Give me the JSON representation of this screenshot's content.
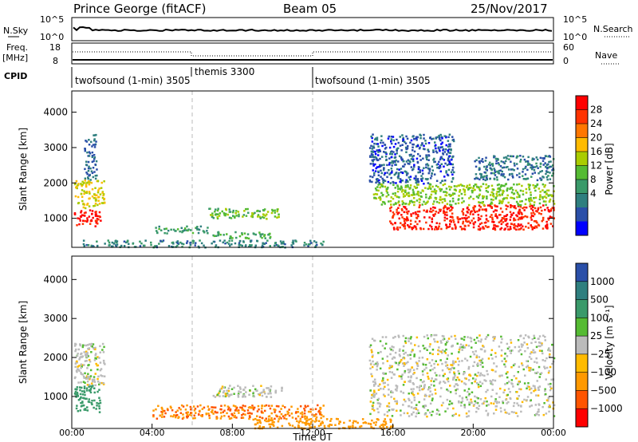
{
  "header": {
    "title": "Prince George (fitACF)",
    "beam": "Beam 05",
    "date": "25/Nov/2017"
  },
  "top_panels": {
    "nsky_label": "N.Sky",
    "nsky_ticks": [
      "10^5",
      "10^0"
    ],
    "nsearch_label": "N.Search",
    "nsearch_ticks": [
      "10^5",
      "10^0"
    ],
    "freq_label": "Freq.",
    "freq_unit": "[MHz]",
    "freq_ticks": [
      "18",
      "8"
    ],
    "nave_label": "Nave",
    "nave_ticks": [
      "60",
      "0"
    ],
    "cpid_label": "CPID",
    "cpid_segments": [
      {
        "label": "twofsound (1-min) 3505",
        "start_h": 0,
        "end_h": 6
      },
      {
        "label": "themis 3300",
        "start_h": 6,
        "end_h": 12
      },
      {
        "label": "twofsound (1-min) 3505",
        "start_h": 12,
        "end_h": 24
      }
    ]
  },
  "power_colorbar": {
    "label": "Power [dB]",
    "ticks": [
      "28",
      "24",
      "20",
      "16",
      "12",
      "8",
      "4"
    ],
    "colors": [
      "#ff0000",
      "#ff3300",
      "#ff7700",
      "#ffbb00",
      "#aacc00",
      "#55bb33",
      "#3a9a6a",
      "#2f7f7f",
      "#2a4fa8",
      "#0000ff"
    ]
  },
  "velocity_colorbar": {
    "label": "Velocity [m s⁻¹]",
    "ticks": [
      "1000",
      "500",
      "100",
      "25",
      "−25",
      "−100",
      "−500",
      "−1000"
    ],
    "colors": [
      "#2a4fa8",
      "#2f7f7f",
      "#3a9a6a",
      "#55bb33",
      "#bbbbbb",
      "#ffbb00",
      "#ff9900",
      "#ff5500",
      "#ff0000"
    ]
  },
  "chart_data": [
    {
      "type": "heatmap",
      "name": "power",
      "ylabel": "Slant Range [km]",
      "yticks": [
        "4000",
        "3000",
        "2000",
        "1000"
      ],
      "ylim": [
        180,
        4600
      ],
      "xlim": [
        0,
        24
      ],
      "regions": [
        {
          "t0": 0.1,
          "t1": 1.4,
          "r0": 800,
          "r1": 1300,
          "level": 28
        },
        {
          "t0": 0.1,
          "t1": 1.6,
          "r0": 1300,
          "r1": 2100,
          "level": 18
        },
        {
          "t0": 0.6,
          "t1": 1.2,
          "r0": 2100,
          "r1": 3400,
          "level": 6
        },
        {
          "t0": 6.8,
          "t1": 10.5,
          "r0": 1000,
          "r1": 1300,
          "level": 14
        },
        {
          "t0": 4.0,
          "t1": 6.8,
          "r0": 600,
          "r1": 800,
          "level": 10
        },
        {
          "t0": 7.0,
          "t1": 10.0,
          "r0": 450,
          "r1": 650,
          "level": 12
        },
        {
          "t0": 0.5,
          "t1": 12.5,
          "r0": 200,
          "r1": 400,
          "level": 8
        },
        {
          "t0": 15.8,
          "t1": 24.0,
          "r0": 700,
          "r1": 1400,
          "level": 27
        },
        {
          "t0": 15.0,
          "t1": 24.0,
          "r0": 1400,
          "r1": 2000,
          "level": 15
        },
        {
          "t0": 14.8,
          "t1": 19.0,
          "r0": 2000,
          "r1": 3400,
          "level": 5
        },
        {
          "t0": 20.0,
          "t1": 24.0,
          "r0": 2100,
          "r1": 2800,
          "level": 7
        }
      ]
    },
    {
      "type": "heatmap",
      "name": "velocity",
      "ylabel": "Slant Range [km]",
      "yticks": [
        "4000",
        "3000",
        "2000",
        "1000"
      ],
      "ylim": [
        180,
        4600
      ],
      "xlim": [
        0,
        24
      ],
      "xlabel": "Time UT",
      "xticks": [
        "00:00",
        "04:00",
        "08:00",
        "12:00",
        "16:00",
        "20:00",
        "00:00"
      ],
      "regions": [
        {
          "t0": 0.1,
          "t1": 1.4,
          "r0": 600,
          "r1": 1300,
          "value": 150
        },
        {
          "t0": 0.1,
          "t1": 1.6,
          "r0": 1300,
          "r1": 2400,
          "value": 0
        },
        {
          "t0": 7.0,
          "t1": 10.5,
          "r0": 1000,
          "r1": 1300,
          "value": 0
        },
        {
          "t0": 4.0,
          "t1": 12.5,
          "r0": 450,
          "r1": 800,
          "value": -300
        },
        {
          "t0": 9.0,
          "t1": 16.0,
          "r0": 200,
          "r1": 450,
          "value": -150
        },
        {
          "t0": 14.8,
          "t1": 24.0,
          "r0": 500,
          "r1": 2600,
          "value": 0
        }
      ]
    }
  ]
}
